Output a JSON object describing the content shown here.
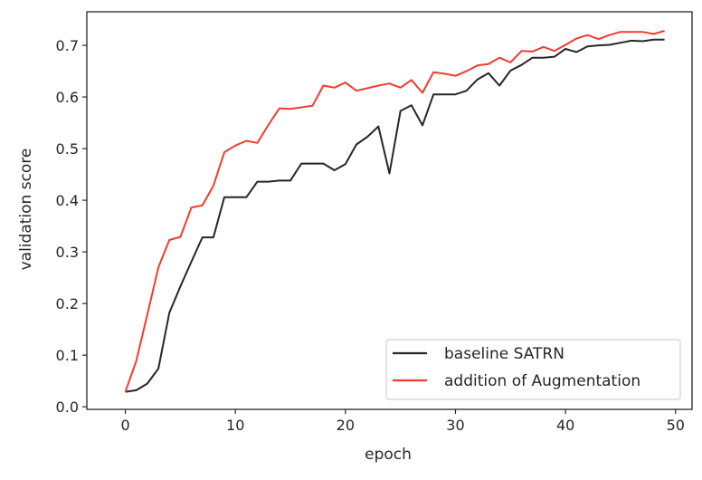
{
  "chart_data": {
    "type": "line",
    "xlabel": "epoch",
    "ylabel": "validation score",
    "xlim": [
      -3.5,
      51.5
    ],
    "ylim": [
      -0.005,
      0.765
    ],
    "xticks": [
      0,
      10,
      20,
      30,
      40,
      50
    ],
    "yticks": [
      0.0,
      0.1,
      0.2,
      0.3,
      0.4,
      0.5,
      0.6,
      0.7
    ],
    "xtick_labels": [
      "0",
      "10",
      "20",
      "30",
      "40",
      "50"
    ],
    "ytick_labels": [
      "0.0",
      "0.1",
      "0.2",
      "0.3",
      "0.4",
      "0.5",
      "0.6",
      "0.7"
    ],
    "grid": false,
    "legend_position": "lower-right",
    "x": [
      0,
      1,
      2,
      3,
      4,
      5,
      6,
      7,
      8,
      9,
      10,
      11,
      12,
      13,
      14,
      15,
      16,
      17,
      18,
      19,
      20,
      21,
      22,
      23,
      24,
      25,
      26,
      27,
      28,
      29,
      30,
      31,
      32,
      33,
      34,
      35,
      36,
      37,
      38,
      39,
      40,
      41,
      42,
      43,
      44,
      45,
      46,
      47,
      48,
      49
    ],
    "series": [
      {
        "name": "baseline SATRN",
        "color": "#262626",
        "values": [
          0.029,
          0.032,
          0.045,
          0.074,
          0.182,
          0.233,
          0.281,
          0.328,
          0.328,
          0.406,
          0.406,
          0.406,
          0.436,
          0.436,
          0.438,
          0.438,
          0.471,
          0.471,
          0.471,
          0.458,
          0.47,
          0.508,
          0.523,
          0.543,
          0.452,
          0.573,
          0.584,
          0.545,
          0.605,
          0.605,
          0.605,
          0.612,
          0.634,
          0.646,
          0.622,
          0.651,
          0.662,
          0.676,
          0.676,
          0.678,
          0.693,
          0.687,
          0.698,
          0.7,
          0.701,
          0.705,
          0.709,
          0.708,
          0.711,
          0.711
        ]
      },
      {
        "name": "addition of Augmentation",
        "color": "#f03c2c",
        "values": [
          0.029,
          0.089,
          0.179,
          0.27,
          0.323,
          0.329,
          0.386,
          0.39,
          0.428,
          0.493,
          0.506,
          0.515,
          0.511,
          0.546,
          0.578,
          0.577,
          0.58,
          0.583,
          0.622,
          0.618,
          0.628,
          0.612,
          0.617,
          0.622,
          0.626,
          0.618,
          0.633,
          0.608,
          0.648,
          0.645,
          0.641,
          0.65,
          0.661,
          0.664,
          0.676,
          0.667,
          0.689,
          0.688,
          0.697,
          0.689,
          0.701,
          0.713,
          0.72,
          0.712,
          0.72,
          0.726,
          0.726,
          0.726,
          0.722,
          0.728
        ]
      }
    ]
  }
}
